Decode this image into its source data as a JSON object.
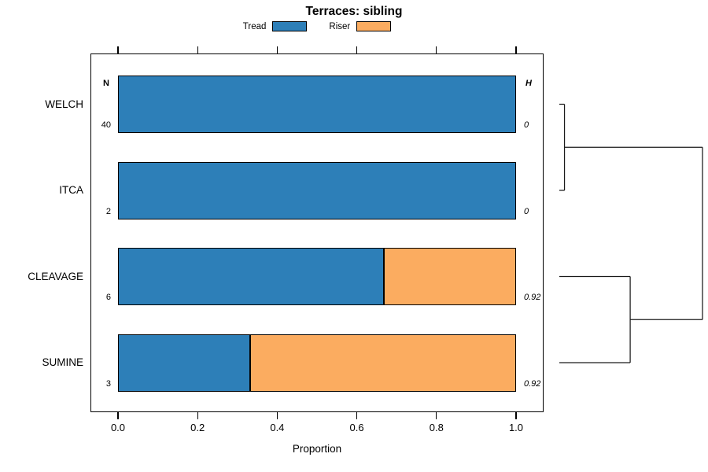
{
  "title": "Terraces: sibling",
  "legend": {
    "items": [
      {
        "label": "Tread",
        "color": "#2d7fb8"
      },
      {
        "label": "Riser",
        "color": "#fbac60"
      }
    ]
  },
  "columns": {
    "n_header": "N",
    "h_header": "H"
  },
  "x_axis": {
    "label": "Proportion",
    "ticks": [
      "0.0",
      "0.2",
      "0.4",
      "0.6",
      "0.8",
      "1.0"
    ]
  },
  "chart_data": {
    "type": "bar",
    "orientation": "horizontal",
    "stacked": true,
    "title": "Terraces: sibling",
    "xlabel": "Proportion",
    "xlim": [
      0,
      1
    ],
    "xticks": [
      0.0,
      0.2,
      0.4,
      0.6,
      0.8,
      1.0
    ],
    "grid": false,
    "legend_position": "top",
    "categories": [
      "WELCH",
      "ITCA",
      "CLEAVAGE",
      "SUMINE"
    ],
    "series": [
      {
        "name": "Tread",
        "color": "#2d7fb8",
        "values": [
          1.0,
          1.0,
          0.667,
          0.333
        ]
      },
      {
        "name": "Riser",
        "color": "#fbac60",
        "values": [
          0.0,
          0.0,
          0.333,
          0.667
        ]
      }
    ],
    "row_annotations": {
      "N": [
        "40",
        "2",
        "6",
        "3"
      ],
      "H": [
        "0",
        "0",
        "0.92",
        "0.92"
      ]
    },
    "dendrogram": {
      "side": "right",
      "merges": [
        {
          "a": "WELCH",
          "b": "ITCA",
          "height": 0.036
        },
        {
          "a": "CLEAVAGE",
          "b": "SUMINE",
          "height": 0.495
        },
        {
          "a": "merge-0",
          "b": "merge-1",
          "height": 1.0
        }
      ]
    }
  }
}
